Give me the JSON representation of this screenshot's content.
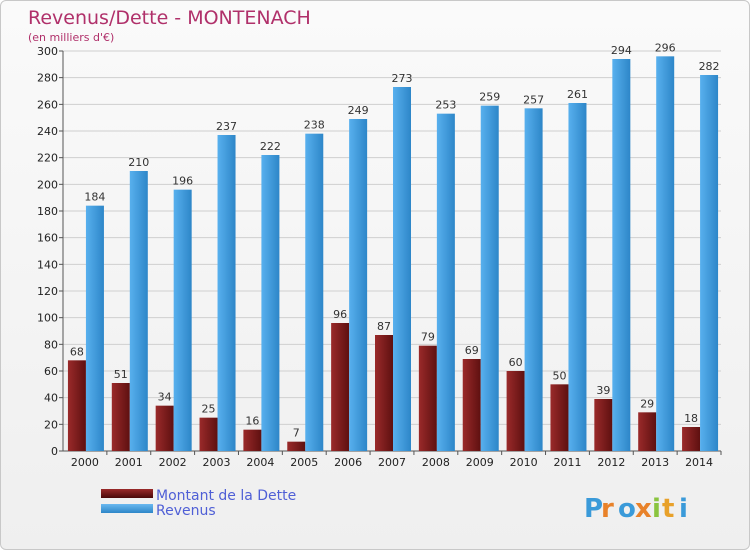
{
  "chart_data": {
    "type": "bar",
    "title": "Revenus/Dette - MONTENACH",
    "subtitle": "(en milliers d'€)",
    "categories": [
      "2000",
      "2001",
      "2002",
      "2003",
      "2004",
      "2005",
      "2006",
      "2007",
      "2008",
      "2009",
      "2010",
      "2011",
      "2012",
      "2013",
      "2014"
    ],
    "series": [
      {
        "name": "Montant de la Dette",
        "color": "#7a1a1a",
        "values": [
          68,
          51,
          34,
          25,
          16,
          7,
          96,
          87,
          79,
          69,
          60,
          50,
          39,
          29,
          18
        ]
      },
      {
        "name": "Revenus",
        "color": "#3d9be0",
        "values": [
          184,
          210,
          196,
          237,
          222,
          238,
          249,
          273,
          253,
          259,
          257,
          261,
          294,
          296,
          282
        ]
      }
    ],
    "ylim": [
      0,
      300
    ],
    "yticks": [
      0,
      20,
      40,
      60,
      80,
      100,
      120,
      140,
      160,
      180,
      200,
      220,
      240,
      260,
      280,
      300
    ],
    "grid": true,
    "legend_position": "bottom-left"
  },
  "logo": {
    "text": "Proxiti",
    "letters": [
      "P",
      "r",
      "o",
      "x",
      "i",
      "t",
      "i"
    ]
  }
}
